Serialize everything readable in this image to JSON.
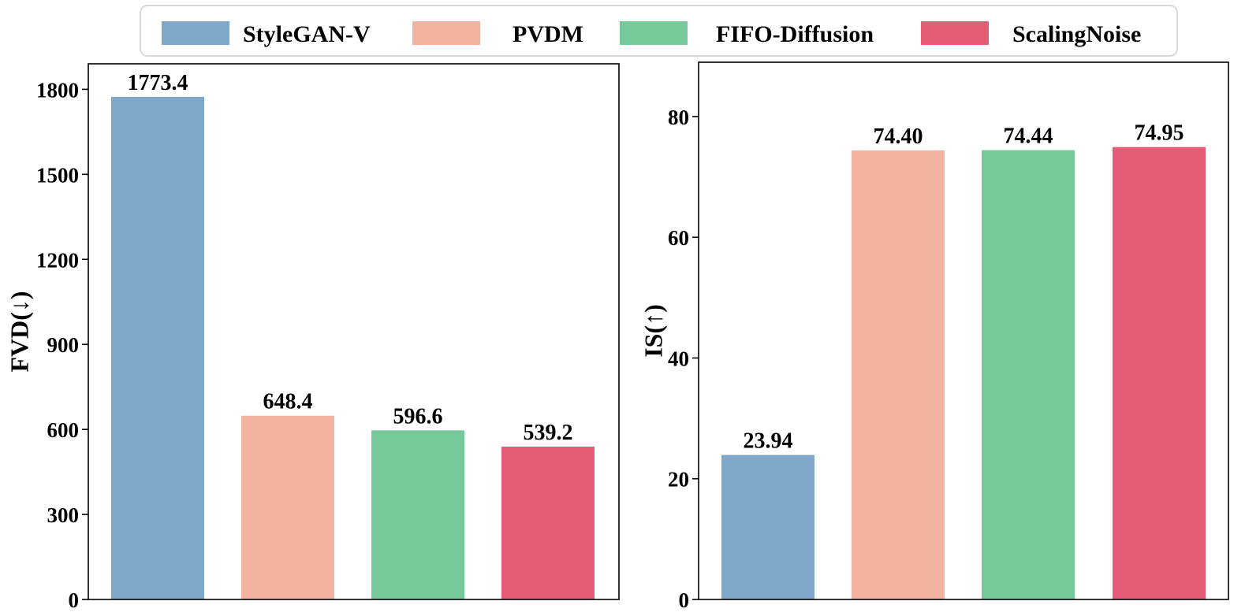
{
  "legend": {
    "entries": [
      {
        "label": "StyleGAN-V",
        "color": "#7ea7c9"
      },
      {
        "label": "PVDM",
        "color": "#f1b39f"
      },
      {
        "label": "FIFO-Diffusion",
        "color": "#76c99b"
      },
      {
        "label": "ScalingNoise",
        "color": "#e55c76"
      }
    ]
  },
  "chart_data": [
    {
      "type": "bar",
      "categories": [
        "StyleGAN-V",
        "PVDM",
        "FIFO-Diffusion",
        "ScalingNoise"
      ],
      "values": [
        1773.4,
        648.4,
        596.6,
        539.2
      ],
      "value_labels": [
        "1773.4",
        "648.4",
        "596.6",
        "539.2"
      ],
      "colors": [
        "#7ea7c9",
        "#f1b39f",
        "#76c99b",
        "#e55c76"
      ],
      "title": "",
      "xlabel": "",
      "ylabel": "FVD(↓)",
      "ylim": [
        0,
        1890
      ],
      "yticks": [
        0,
        300,
        600,
        900,
        1200,
        1500,
        1800
      ],
      "grid": false
    },
    {
      "type": "bar",
      "categories": [
        "StyleGAN-V",
        "PVDM",
        "FIFO-Diffusion",
        "ScalingNoise"
      ],
      "values": [
        23.94,
        74.4,
        74.44,
        74.95
      ],
      "value_labels": [
        "23.94",
        "74.40",
        "74.44",
        "74.95"
      ],
      "colors": [
        "#7ea7c9",
        "#f1b39f",
        "#76c99b",
        "#e55c76"
      ],
      "title": "",
      "xlabel": "",
      "ylabel": "IS(↑)",
      "ylim": [
        0,
        89
      ],
      "yticks": [
        0,
        20,
        40,
        60,
        80
      ],
      "grid": false
    }
  ]
}
